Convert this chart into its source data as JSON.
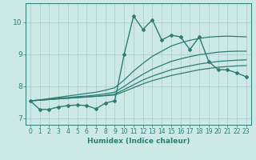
{
  "xlabel": "Humidex (Indice chaleur)",
  "bg_color": "#cce9e5",
  "grid_color": "#b0cfcc",
  "line_color": "#2e7d72",
  "xlim": [
    -0.5,
    23.5
  ],
  "ylim": [
    6.8,
    10.6
  ],
  "yticks": [
    7,
    8,
    9,
    10
  ],
  "xticks": [
    0,
    1,
    2,
    3,
    4,
    5,
    6,
    7,
    8,
    9,
    10,
    11,
    12,
    13,
    14,
    15,
    16,
    17,
    18,
    19,
    20,
    21,
    22,
    23
  ],
  "main_line": {
    "x": [
      0,
      1,
      2,
      3,
      4,
      5,
      6,
      7,
      8,
      9,
      10,
      11,
      12,
      13,
      14,
      15,
      16,
      17,
      18,
      19,
      20,
      21,
      22,
      23
    ],
    "y": [
      7.55,
      7.28,
      7.28,
      7.36,
      7.4,
      7.42,
      7.4,
      7.3,
      7.48,
      7.55,
      9.0,
      10.2,
      9.78,
      10.08,
      9.45,
      9.6,
      9.55,
      9.15,
      9.55,
      8.78,
      8.52,
      8.52,
      8.42,
      8.3
    ],
    "marker": "D",
    "markersize": 2.0,
    "linewidth": 1.0
  },
  "smooth_lines": [
    {
      "x": [
        0,
        1,
        2,
        3,
        4,
        5,
        6,
        7,
        8,
        9,
        10,
        11,
        12,
        13,
        14,
        15,
        16,
        17,
        18,
        19,
        20,
        21,
        22,
        23
      ],
      "y": [
        7.55,
        7.57,
        7.59,
        7.61,
        7.63,
        7.65,
        7.67,
        7.69,
        7.71,
        7.73,
        7.84,
        7.96,
        8.08,
        8.18,
        8.26,
        8.34,
        8.4,
        8.46,
        8.52,
        8.56,
        8.6,
        8.62,
        8.64,
        8.65
      ],
      "linewidth": 0.9
    },
    {
      "x": [
        0,
        1,
        2,
        3,
        4,
        5,
        6,
        7,
        8,
        9,
        10,
        11,
        12,
        13,
        14,
        15,
        16,
        17,
        18,
        19,
        20,
        21,
        22,
        23
      ],
      "y": [
        7.55,
        7.57,
        7.59,
        7.61,
        7.63,
        7.65,
        7.67,
        7.69,
        7.72,
        7.76,
        7.9,
        8.05,
        8.2,
        8.32,
        8.42,
        8.52,
        8.58,
        8.64,
        8.7,
        8.74,
        8.78,
        8.8,
        8.82,
        8.83
      ],
      "linewidth": 0.9
    },
    {
      "x": [
        0,
        1,
        2,
        3,
        4,
        5,
        6,
        7,
        8,
        9,
        10,
        11,
        12,
        13,
        14,
        15,
        16,
        17,
        18,
        19,
        20,
        21,
        22,
        23
      ],
      "y": [
        7.55,
        7.57,
        7.6,
        7.63,
        7.65,
        7.68,
        7.7,
        7.73,
        7.77,
        7.82,
        8.0,
        8.2,
        8.38,
        8.54,
        8.66,
        8.78,
        8.86,
        8.93,
        8.99,
        9.03,
        9.07,
        9.09,
        9.1,
        9.1
      ],
      "linewidth": 0.9
    },
    {
      "x": [
        0,
        1,
        2,
        3,
        4,
        5,
        6,
        7,
        8,
        9,
        10,
        11,
        12,
        13,
        14,
        15,
        16,
        17,
        18,
        19,
        20,
        21,
        22,
        23
      ],
      "y": [
        7.55,
        7.58,
        7.62,
        7.66,
        7.7,
        7.74,
        7.78,
        7.82,
        7.88,
        7.96,
        8.2,
        8.48,
        8.72,
        8.94,
        9.1,
        9.26,
        9.36,
        9.44,
        9.5,
        9.54,
        9.56,
        9.57,
        9.56,
        9.55
      ],
      "linewidth": 0.9
    }
  ]
}
